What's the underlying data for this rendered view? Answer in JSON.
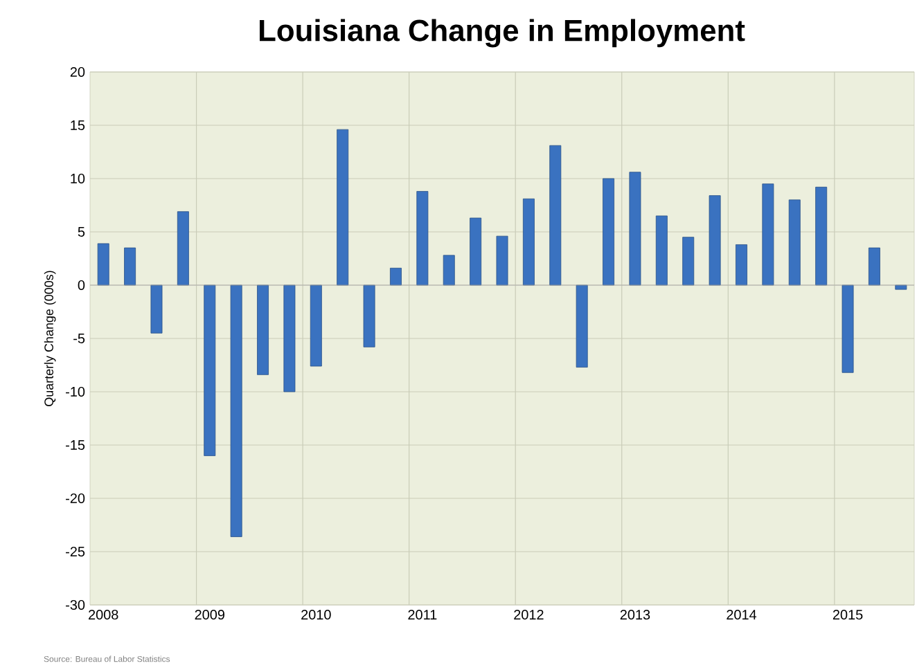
{
  "chart_data": {
    "type": "bar",
    "title": "Louisiana Change in Employment",
    "ylabel": "Quarterly Change (000s)",
    "categories": [
      "2008",
      null,
      null,
      null,
      "2009",
      null,
      null,
      null,
      "2010",
      null,
      null,
      null,
      "2011",
      null,
      null,
      null,
      "2012",
      null,
      null,
      null,
      "2013",
      null,
      null,
      null,
      "2014",
      null,
      null,
      null,
      "2015",
      null,
      null
    ],
    "values": [
      3.9,
      3.5,
      -4.5,
      6.9,
      -16.0,
      -23.6,
      -8.4,
      -10.0,
      -7.6,
      14.6,
      -5.8,
      1.6,
      8.8,
      2.8,
      6.3,
      4.6,
      8.1,
      13.1,
      -7.7,
      10.0,
      10.6,
      6.5,
      4.5,
      8.4,
      3.8,
      9.5,
      8.0,
      9.2,
      -8.2,
      3.5,
      -0.4
    ],
    "color": "#3a72c0",
    "ylim": [
      -30,
      20
    ],
    "yticks": [
      -30,
      -25,
      -20,
      -15,
      -10,
      -5,
      0,
      5,
      10,
      15,
      20
    ],
    "grid": true,
    "annotations": [
      "Source: Bureau of Labor Statistics"
    ]
  }
}
